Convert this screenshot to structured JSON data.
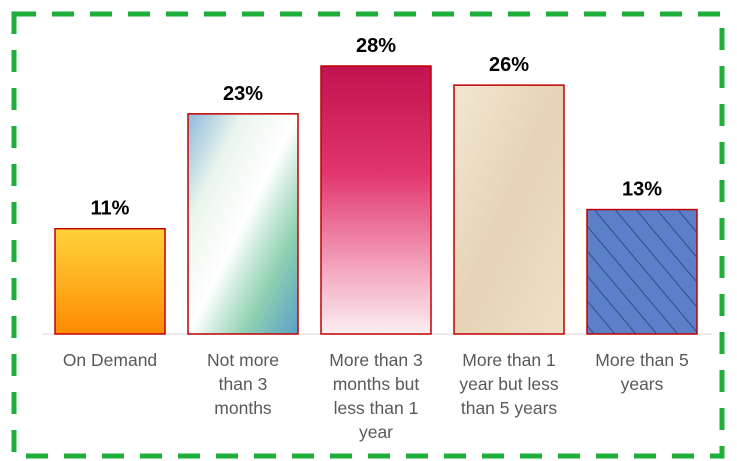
{
  "chart_data": {
    "type": "bar",
    "title": "",
    "xlabel": "",
    "ylabel": "",
    "categories": [
      [
        "On Demand"
      ],
      [
        "Not more",
        "than 3",
        "months"
      ],
      [
        "More than 3",
        "months but",
        "less than 1",
        "year"
      ],
      [
        "More than 1",
        "year but less",
        "than 5 years"
      ],
      [
        "More than 5",
        "years"
      ]
    ],
    "values": [
      11,
      23,
      28,
      26,
      13
    ],
    "value_labels": [
      "11%",
      "23%",
      "28%",
      "26%",
      "13%"
    ],
    "ylim": [
      0,
      30
    ],
    "grid": false,
    "legend": "none",
    "colors": {
      "bar_border": "#c00000",
      "frame_dash": "#1eae3a",
      "value_text": "#000000",
      "category_text": "#595959",
      "bar_fills": [
        "#ff9900",
        "#ffffff",
        "#d4145a",
        "#ecdcc4",
        "#5b7fc9"
      ]
    }
  }
}
